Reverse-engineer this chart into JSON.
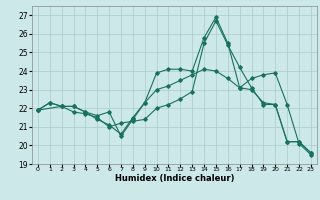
{
  "title": "",
  "xlabel": "Humidex (Indice chaleur)",
  "ylabel": "",
  "bg_color": "#cce8e8",
  "grid_color": "#aacccc",
  "line_color": "#1a7060",
  "xlim": [
    -0.5,
    23.5
  ],
  "ylim": [
    19,
    27.5
  ],
  "yticks": [
    19,
    20,
    21,
    22,
    23,
    24,
    25,
    26,
    27
  ],
  "xticks": [
    0,
    1,
    2,
    3,
    4,
    5,
    6,
    7,
    8,
    9,
    10,
    11,
    12,
    13,
    14,
    15,
    16,
    17,
    18,
    19,
    20,
    21,
    22,
    23
  ],
  "line1_x": [
    0,
    1,
    2,
    3,
    4,
    5,
    6,
    7,
    8,
    9,
    10,
    11,
    12,
    13,
    14,
    15,
    16,
    17,
    18,
    19,
    20,
    21,
    22,
    23
  ],
  "line1_y": [
    21.9,
    22.3,
    22.1,
    22.1,
    21.8,
    21.4,
    21.1,
    20.6,
    21.5,
    22.3,
    23.0,
    23.2,
    23.5,
    23.8,
    24.1,
    24.0,
    23.6,
    23.1,
    23.0,
    22.3,
    22.2,
    20.2,
    20.2,
    19.6
  ],
  "line2_x": [
    0,
    1,
    2,
    3,
    4,
    5,
    6,
    7,
    8,
    9,
    10,
    11,
    12,
    13,
    14,
    15,
    16,
    17,
    18,
    19,
    20,
    21,
    22,
    23
  ],
  "line2_y": [
    21.9,
    22.3,
    22.1,
    21.8,
    21.7,
    21.5,
    21.0,
    21.2,
    21.3,
    21.4,
    22.0,
    22.2,
    22.5,
    22.9,
    25.5,
    26.7,
    25.4,
    24.2,
    23.1,
    22.2,
    22.2,
    20.2,
    20.2,
    19.6
  ],
  "line3_x": [
    0,
    2,
    3,
    4,
    5,
    6,
    7,
    8,
    9,
    10,
    11,
    12,
    13,
    14,
    15,
    16,
    17,
    18,
    19,
    20,
    21,
    22,
    23
  ],
  "line3_y": [
    21.9,
    22.1,
    22.1,
    21.8,
    21.6,
    21.8,
    20.5,
    21.4,
    22.3,
    23.9,
    24.1,
    24.1,
    24.0,
    25.8,
    26.9,
    25.5,
    23.1,
    23.6,
    23.8,
    23.9,
    22.2,
    20.1,
    19.5
  ]
}
